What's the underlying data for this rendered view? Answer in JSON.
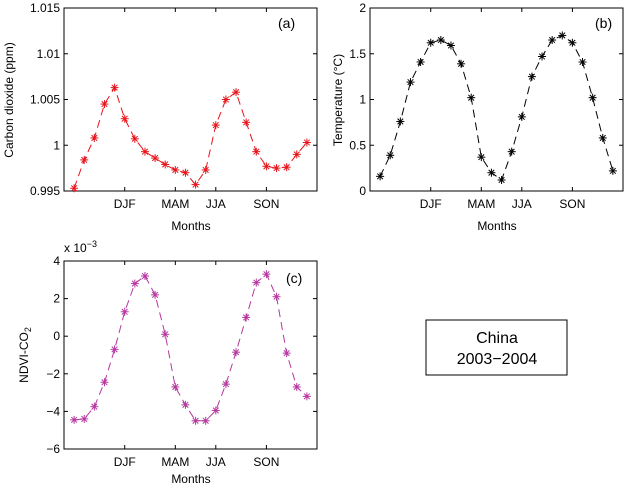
{
  "chart_data": [
    {
      "id": "a",
      "type": "line",
      "panel_label": "(a)",
      "xlabel": "Months",
      "ylabel": "Carbon dioxide (ppm)",
      "xticks": [
        {
          "x": 4,
          "label": "DJF"
        },
        {
          "x": 7,
          "label": "MAM"
        },
        {
          "x": 10,
          "label": "JJA"
        },
        {
          "x": 13,
          "label": "SON"
        }
      ],
      "xlim": [
        0.5,
        17
      ],
      "ylim": [
        0.995,
        1.015
      ],
      "yticks": [
        {
          "v": 0.995,
          "label": "0.995"
        },
        {
          "v": 1.0,
          "label": "1"
        },
        {
          "v": 1.005,
          "label": "1.005"
        },
        {
          "v": 1.01,
          "label": "1.01"
        },
        {
          "v": 1.015,
          "label": "1.015"
        }
      ],
      "color": "#e8141c",
      "line_style": "dashed",
      "marker": "asterisk",
      "x": [
        1,
        2,
        3,
        4,
        5,
        6,
        7,
        8,
        9,
        9.7,
        10.3,
        11,
        12,
        13,
        14,
        15,
        16,
        17
      ],
      "values": [
        0.9952,
        0.9985,
        1.0008,
        1.0045,
        1.0063,
        1.0029,
        1.0007,
        0.9993,
        0.9985,
        0.9978,
        0.9972,
        0.997,
        0.9957,
        0.9972,
        1.0022,
        1.005,
        1.0058,
        1.0025
      ],
      "x_full": [
        1,
        2,
        3,
        4,
        5,
        6,
        7,
        8,
        9,
        10,
        11,
        12,
        13,
        14,
        15,
        16,
        17,
        18,
        19,
        20,
        21,
        22,
        23,
        24
      ],
      "values_full": [
        0.9953,
        0.9984,
        1.0008,
        1.0045,
        1.0063,
        1.0029,
        1.0007,
        0.9993,
        0.9986,
        0.9979,
        0.9973,
        0.997,
        0.9957,
        0.9973,
        1.0022,
        1.005,
        1.0058,
        1.0025,
        0.9993,
        0.9977,
        0.9975,
        0.9976,
        0.999,
        1.0003
      ]
    },
    {
      "id": "b",
      "type": "line",
      "panel_label": "(b)",
      "xlabel": "Months",
      "ylabel": "Temperature (°C)",
      "xticks": [
        {
          "x": 6,
          "label": "DJF"
        },
        {
          "x": 11,
          "label": "MAM"
        },
        {
          "x": 15,
          "label": "JJA"
        },
        {
          "x": 20,
          "label": "SON"
        }
      ],
      "xlim": [
        0,
        25
      ],
      "ylim": [
        0,
        2
      ],
      "yticks": [
        {
          "v": 0,
          "label": "0"
        },
        {
          "v": 0.5,
          "label": "0.5"
        },
        {
          "v": 1,
          "label": "1"
        },
        {
          "v": 1.5,
          "label": "1.5"
        },
        {
          "v": 2,
          "label": "2"
        }
      ],
      "color": "#000000",
      "line_style": "dashed",
      "marker": "asterisk",
      "x": [
        1,
        2,
        3,
        4,
        5,
        6,
        7,
        8,
        9,
        10,
        11,
        12,
        13,
        14,
        15,
        16,
        17,
        18,
        19,
        20,
        21,
        22,
        23,
        24
      ],
      "values": [
        0.16,
        0.39,
        0.76,
        1.19,
        1.41,
        1.62,
        1.65,
        1.59,
        1.39,
        1.02,
        0.37,
        0.2,
        0.12,
        0.43,
        0.81,
        1.25,
        1.47,
        1.65,
        1.7,
        1.62,
        1.41,
        1.02,
        0.58,
        0.22
      ]
    },
    {
      "id": "c",
      "type": "line",
      "panel_label": "(c)",
      "xlabel": "Months",
      "ylabel_main": "NDVI-CO",
      "ylabel_sub": "2",
      "exponent_label": "x 10",
      "exponent_power": "−3",
      "xticks": [
        {
          "x": 6,
          "label": "DJF"
        },
        {
          "x": 11,
          "label": "MAM"
        },
        {
          "x": 15,
          "label": "JJA"
        },
        {
          "x": 20,
          "label": "SON"
        }
      ],
      "xlim": [
        0,
        25
      ],
      "ylim": [
        -6,
        4
      ],
      "yticks": [
        {
          "v": -6,
          "label": "−6"
        },
        {
          "v": -4,
          "label": "−4"
        },
        {
          "v": -2,
          "label": "−2"
        },
        {
          "v": 0,
          "label": "0"
        },
        {
          "v": 2,
          "label": "2"
        },
        {
          "v": 4,
          "label": "4"
        }
      ],
      "color": "#b5379f",
      "line_style": "dashed",
      "marker": "asterisk",
      "x": [
        1,
        2,
        3,
        4,
        5,
        6,
        7,
        8,
        9,
        10,
        11,
        12,
        13,
        14,
        15,
        16,
        17,
        18,
        19,
        20,
        21,
        22,
        23,
        24
      ],
      "values": [
        -4.45,
        -4.4,
        -3.75,
        -2.45,
        -0.7,
        1.3,
        2.8,
        3.2,
        2.2,
        0.1,
        -2.7,
        -3.65,
        -4.5,
        -4.5,
        -3.95,
        -2.55,
        -0.85,
        1.0,
        2.85,
        3.3,
        2.1,
        -0.9,
        -2.7,
        -3.2
      ]
    }
  ],
  "legend_box": {
    "line1": "China",
    "line2": "2003−2004"
  }
}
